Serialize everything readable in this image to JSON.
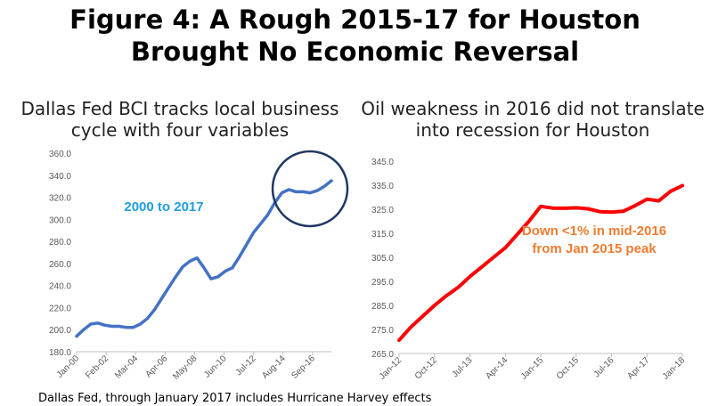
{
  "title_line1": "Figure 4: A Rough 2015-17 for Houston",
  "title_line2": "Brought No Economic Reversal",
  "source": "Dallas Fed, through January 2017 includes Hurricane Harvey effects",
  "chart_data": [
    {
      "type": "line",
      "title": "Dallas Fed BCI tracks local business cycle with four variables",
      "title_lines": [
        "Dallas Fed BCI tracks local business",
        "cycle with four variables"
      ],
      "annotation": "2000 to 2017",
      "annotation_color": "#1e9fe0",
      "line_color": "#4472c4",
      "circle_color": "#1f3864",
      "ylim": [
        180,
        360
      ],
      "yticks": [
        "180.0",
        "200.0",
        "220.0",
        "240.0",
        "260.0",
        "280.0",
        "300.0",
        "320.0",
        "340.0",
        "360.0"
      ],
      "xticks": [
        "Jan-00",
        "Feb-02",
        "Mar-04",
        "Apr-06",
        "May-08",
        "Jun-10",
        "Jul-12",
        "Aug-14",
        "Sep-16"
      ],
      "series": [
        {
          "x": [
            "Jan-00",
            "Jul-00",
            "Jan-01",
            "Jul-01",
            "Jan-02",
            "Jul-02",
            "Jan-03",
            "Jul-03",
            "Jan-04",
            "Jul-04",
            "Jan-05",
            "Jul-05",
            "Jan-06",
            "Jul-06",
            "Jan-07",
            "Jul-07",
            "Jan-08",
            "Jul-08",
            "Jan-09",
            "Jul-09",
            "Jan-10",
            "Jul-10",
            "Jan-11",
            "Jul-11",
            "Jan-12",
            "Jul-12",
            "Jan-13",
            "Jul-13",
            "Jan-14",
            "Jul-14",
            "Jan-15",
            "Jul-15",
            "Jan-16",
            "Jul-16",
            "Jan-17",
            "Jul-17",
            "Jan-18"
          ],
          "values": [
            194,
            200,
            205,
            206,
            204,
            203,
            203,
            202,
            202,
            205,
            210,
            218,
            228,
            238,
            248,
            257,
            262,
            265,
            256,
            246,
            248,
            253,
            256,
            266,
            277,
            288,
            296,
            304,
            315,
            324,
            327,
            325,
            325,
            324,
            326,
            330,
            335
          ]
        }
      ]
    },
    {
      "type": "line",
      "title": "Oil weakness in 2016 did not translate into recession for Houston",
      "title_lines": [
        "Oil weakness in 2016 did not translate",
        "into recession for Houston"
      ],
      "annotation_lines": [
        "Down <1% in mid-2016",
        "from Jan 2015 peak"
      ],
      "annotation_color": "#ed7d31",
      "line_color": "#ff0000",
      "ylim": [
        265,
        345
      ],
      "yticks": [
        "265.0",
        "275.0",
        "285.0",
        "295.0",
        "305.0",
        "315.0",
        "325.0",
        "335.0",
        "345.0"
      ],
      "xticks": [
        "Jan-12",
        "Oct-12",
        "Jul-13",
        "Apr-14",
        "Jan-15",
        "Oct-15",
        "Jul-16",
        "Apr-17",
        "Jan-18"
      ],
      "series": [
        {
          "x": [
            "Jan-12",
            "Apr-12",
            "Jul-12",
            "Oct-12",
            "Jan-13",
            "Apr-13",
            "Jul-13",
            "Oct-13",
            "Jan-14",
            "Apr-14",
            "Jul-14",
            "Oct-14",
            "Jan-15",
            "Apr-15",
            "Jul-15",
            "Oct-15",
            "Jan-16",
            "Apr-16",
            "Jul-16",
            "Oct-16",
            "Jan-17",
            "Apr-17",
            "Jul-17",
            "Oct-17",
            "Jan-18"
          ],
          "values": [
            270.5,
            276,
            280.5,
            285,
            289,
            292.5,
            297,
            301,
            305,
            309,
            314.5,
            320,
            326.2,
            325.5,
            325.4,
            325.6,
            325.2,
            324,
            323.8,
            324.2,
            326.5,
            329.2,
            328.5,
            332.5,
            334.8
          ]
        }
      ]
    }
  ]
}
